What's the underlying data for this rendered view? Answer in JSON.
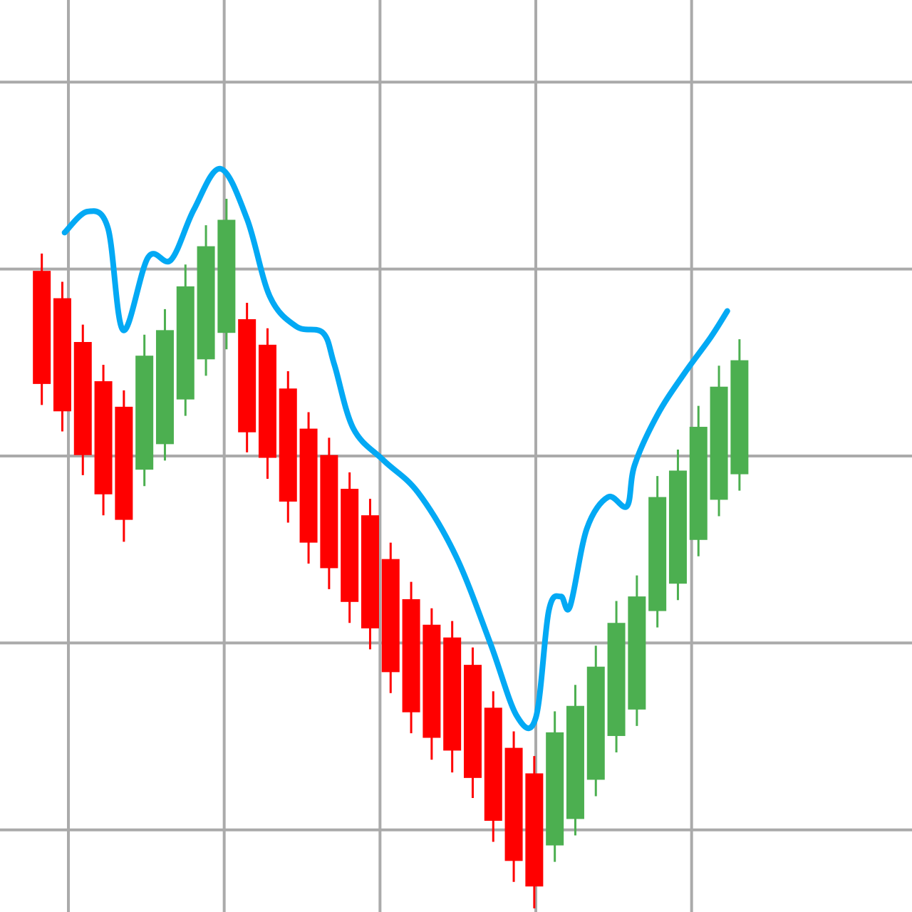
{
  "chart_data": {
    "type": "candlestick",
    "title": "",
    "xlabel": "",
    "ylabel": "",
    "grid": true,
    "legend": "none",
    "xlim": [
      0,
      120
    ],
    "ylim": [
      0,
      100
    ],
    "colors": {
      "up": "#4caf50",
      "down": "#ff0000",
      "overlay": "#03a9f4",
      "grid": "#aaaaaa",
      "background": "#ffffff"
    },
    "grid_x": [
      9,
      29.5,
      50,
      70.5,
      91
    ],
    "grid_y": [
      9,
      29.5,
      50,
      70.5,
      91
    ],
    "candles": [
      {
        "x": 5.5,
        "open": 70.3,
        "close": 57.9,
        "high": 72.2,
        "low": 55.6
      },
      {
        "x": 8.2,
        "open": 67.3,
        "close": 54.9,
        "high": 69.1,
        "low": 52.7
      },
      {
        "x": 10.9,
        "open": 62.5,
        "close": 50.1,
        "high": 64.4,
        "low": 47.9
      },
      {
        "x": 13.6,
        "open": 58.2,
        "close": 45.8,
        "high": 60.0,
        "low": 43.5
      },
      {
        "x": 16.3,
        "open": 55.4,
        "close": 43.0,
        "high": 57.2,
        "low": 40.6
      },
      {
        "x": 19.0,
        "open": 48.5,
        "close": 61.0,
        "high": 63.3,
        "low": 46.7
      },
      {
        "x": 21.7,
        "open": 51.3,
        "close": 63.8,
        "high": 66.1,
        "low": 49.5
      },
      {
        "x": 24.4,
        "open": 56.2,
        "close": 68.6,
        "high": 71.0,
        "low": 54.4
      },
      {
        "x": 27.1,
        "open": 60.6,
        "close": 73.0,
        "high": 75.3,
        "low": 58.8
      },
      {
        "x": 29.8,
        "open": 63.5,
        "close": 75.9,
        "high": 78.2,
        "low": 61.7
      },
      {
        "x": 32.5,
        "open": 65.0,
        "close": 52.6,
        "high": 66.8,
        "low": 50.4
      },
      {
        "x": 35.2,
        "open": 62.2,
        "close": 49.8,
        "high": 64.0,
        "low": 47.5
      },
      {
        "x": 37.9,
        "open": 57.4,
        "close": 45.0,
        "high": 59.3,
        "low": 42.7
      },
      {
        "x": 40.6,
        "open": 53.0,
        "close": 40.5,
        "high": 54.8,
        "low": 38.2
      },
      {
        "x": 43.3,
        "open": 50.1,
        "close": 37.7,
        "high": 52.0,
        "low": 35.4
      },
      {
        "x": 46.0,
        "open": 46.4,
        "close": 34.0,
        "high": 48.2,
        "low": 31.7
      },
      {
        "x": 48.7,
        "open": 43.5,
        "close": 31.1,
        "high": 45.3,
        "low": 28.8
      },
      {
        "x": 51.4,
        "open": 38.7,
        "close": 26.3,
        "high": 40.5,
        "low": 24.0
      },
      {
        "x": 54.1,
        "open": 34.3,
        "close": 21.9,
        "high": 36.2,
        "low": 19.6
      },
      {
        "x": 56.8,
        "open": 31.5,
        "close": 19.1,
        "high": 33.3,
        "low": 16.7
      },
      {
        "x": 59.5,
        "open": 30.1,
        "close": 17.7,
        "high": 31.9,
        "low": 15.3
      },
      {
        "x": 62.2,
        "open": 27.1,
        "close": 14.7,
        "high": 29.0,
        "low": 12.5
      },
      {
        "x": 64.9,
        "open": 22.4,
        "close": 10.0,
        "high": 24.2,
        "low": 7.7
      },
      {
        "x": 67.6,
        "open": 18.0,
        "close": 5.6,
        "high": 19.8,
        "low": 3.3
      },
      {
        "x": 70.3,
        "open": 15.2,
        "close": 2.8,
        "high": 17.1,
        "low": 0.4
      },
      {
        "x": 73.0,
        "open": 7.3,
        "close": 19.7,
        "high": 22.0,
        "low": 5.5
      },
      {
        "x": 75.7,
        "open": 10.2,
        "close": 22.6,
        "high": 24.9,
        "low": 8.4
      },
      {
        "x": 78.4,
        "open": 14.5,
        "close": 26.9,
        "high": 29.2,
        "low": 12.7
      },
      {
        "x": 81.1,
        "open": 19.3,
        "close": 31.7,
        "high": 34.1,
        "low": 17.5
      },
      {
        "x": 83.8,
        "open": 22.2,
        "close": 34.6,
        "high": 36.9,
        "low": 20.4
      },
      {
        "x": 86.5,
        "open": 33.0,
        "close": 45.5,
        "high": 47.8,
        "low": 31.2
      },
      {
        "x": 89.2,
        "open": 36.0,
        "close": 48.4,
        "high": 50.7,
        "low": 34.2
      },
      {
        "x": 91.9,
        "open": 40.8,
        "close": 53.2,
        "high": 55.5,
        "low": 39.0
      },
      {
        "x": 94.6,
        "open": 45.2,
        "close": 57.6,
        "high": 59.9,
        "low": 43.4
      },
      {
        "x": 97.3,
        "open": 48.0,
        "close": 60.5,
        "high": 62.8,
        "low": 46.2
      }
    ],
    "overlay_line": [
      [
        8.5,
        74.5
      ],
      [
        11.5,
        76.8
      ],
      [
        14.2,
        75.0
      ],
      [
        16.2,
        63.8
      ],
      [
        19.5,
        71.8
      ],
      [
        22.5,
        71.5
      ],
      [
        25.5,
        77.0
      ],
      [
        29.0,
        81.5
      ],
      [
        32.5,
        76.0
      ],
      [
        35.5,
        67.5
      ],
      [
        39.0,
        64.2
      ],
      [
        42.5,
        63.5
      ],
      [
        44.0,
        60.0
      ],
      [
        46.5,
        53.0
      ],
      [
        50.5,
        49.5
      ],
      [
        55.0,
        46.0
      ],
      [
        60.0,
        39.0
      ],
      [
        64.5,
        29.5
      ],
      [
        68.0,
        21.5
      ],
      [
        70.5,
        21.3
      ],
      [
        72.2,
        33.0
      ],
      [
        73.8,
        34.6
      ],
      [
        75.0,
        33.5
      ],
      [
        77.2,
        42.0
      ],
      [
        80.0,
        45.5
      ],
      [
        82.5,
        44.5
      ],
      [
        83.5,
        49.0
      ],
      [
        86.5,
        54.5
      ],
      [
        90.0,
        59.0
      ],
      [
        93.5,
        63.0
      ],
      [
        95.7,
        65.9
      ]
    ]
  }
}
